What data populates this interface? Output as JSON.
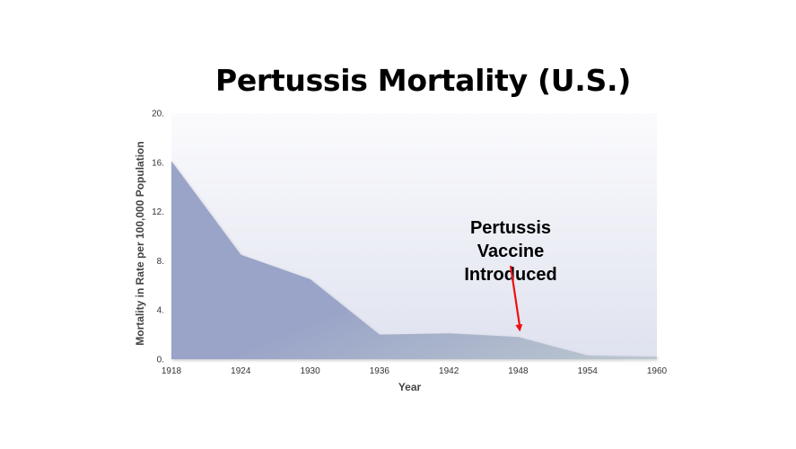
{
  "title": "Pertussis Mortality (U.S.)",
  "chart_data": {
    "type": "area",
    "x": [
      1918,
      1924,
      1930,
      1936,
      1942,
      1948,
      1954,
      1960
    ],
    "y": [
      16.1,
      8.5,
      6.5,
      2.0,
      2.1,
      1.8,
      0.3,
      0.2
    ],
    "xticks": [
      "1918",
      "1924",
      "1930",
      "1936",
      "1942",
      "1948",
      "1954",
      "1960"
    ],
    "yticks": [
      "0.",
      "4.",
      "8.",
      "12.",
      "16.",
      "20."
    ],
    "ytick_values": [
      0,
      4,
      8,
      12,
      16,
      20
    ],
    "xlim": [
      1918,
      1960
    ],
    "ylim": [
      0,
      20
    ],
    "xlabel": "Year",
    "ylabel": "Mortality in Rate per 100,000 Population",
    "grid": false,
    "annotation": {
      "lines": [
        "Pertussis",
        "Vaccine",
        "Introduced"
      ],
      "x": 1948,
      "y": 1.8,
      "arrow_color": "#ee1111"
    },
    "colors": {
      "area_fill": "#9aa4c8",
      "area_fill_dark": "#bcc8d0",
      "plot_bg_top": "#fbfbfd",
      "plot_bg_bottom": "#dfe2ef"
    }
  }
}
